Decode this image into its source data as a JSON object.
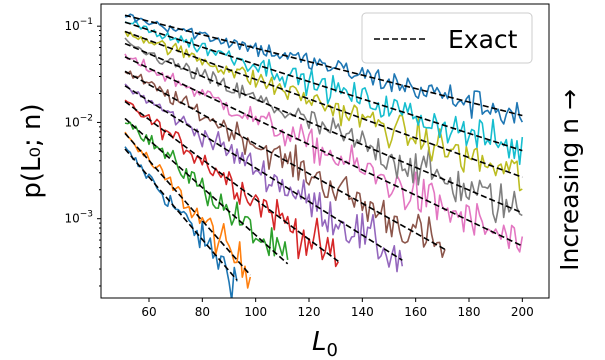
{
  "chart_data": {
    "type": "line",
    "ylabel": "p(L₀; n)",
    "xlabel_base": "L",
    "xlabel_sub": "0",
    "right_label": "Increasing n →",
    "y_scale": "log",
    "xlim": [
      42,
      210
    ],
    "ylim": [
      0.00015,
      0.17
    ],
    "x_ticks": [
      60,
      80,
      100,
      120,
      140,
      160,
      180,
      200
    ],
    "y_ticks": [
      {
        "value": 0.1,
        "base": "10",
        "exp": "−1"
      },
      {
        "value": 0.01,
        "base": "10",
        "exp": "−2"
      },
      {
        "value": 0.001,
        "base": "10",
        "exp": "−3"
      }
    ],
    "legend": {
      "entries": [
        {
          "label": "Exact",
          "style": "dashed",
          "color": "#000000"
        }
      ],
      "placement": "upper right"
    },
    "series": [
      {
        "color": "#1f77b4",
        "x_start": 51,
        "x_end": 93,
        "y_start": 0.0053,
        "y_end": 0.00023
      },
      {
        "color": "#ff7f0e",
        "x_start": 51,
        "x_end": 98,
        "y_start": 0.0077,
        "y_end": 0.00026
      },
      {
        "color": "#2ca02c",
        "x_start": 51,
        "x_end": 112,
        "y_start": 0.011,
        "y_end": 0.00034
      },
      {
        "color": "#d62728",
        "x_start": 51,
        "x_end": 131,
        "y_start": 0.0165,
        "y_end": 0.00036
      },
      {
        "color": "#9467bd",
        "x_start": 51,
        "x_end": 155,
        "y_start": 0.024,
        "y_end": 0.00037
      },
      {
        "color": "#8c564b",
        "x_start": 51,
        "x_end": 171,
        "y_start": 0.034,
        "y_end": 0.00048
      },
      {
        "color": "#e377c2",
        "x_start": 51,
        "x_end": 200,
        "y_start": 0.048,
        "y_end": 0.00052
      },
      {
        "color": "#7f7f7f",
        "x_start": 51,
        "x_end": 200,
        "y_start": 0.066,
        "y_end": 0.00115
      },
      {
        "color": "#bcbd22",
        "x_start": 51,
        "x_end": 200,
        "y_start": 0.088,
        "y_end": 0.0027
      },
      {
        "color": "#17becf",
        "x_start": 51,
        "x_end": 200,
        "y_start": 0.11,
        "y_end": 0.0051
      },
      {
        "color": "#1f77b4",
        "x_start": 51,
        "x_end": 200,
        "y_start": 0.13,
        "y_end": 0.0118
      }
    ]
  }
}
